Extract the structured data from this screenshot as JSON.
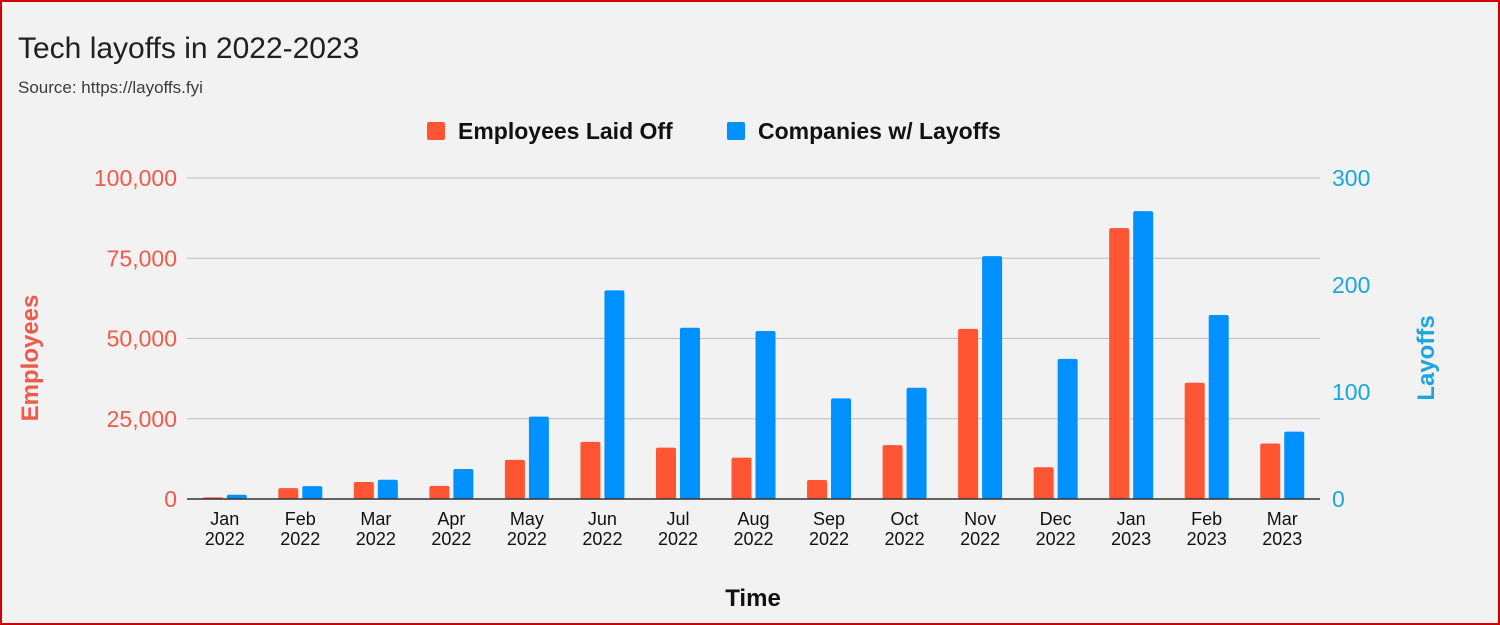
{
  "chart_data": {
    "type": "bar",
    "title": "Tech layoffs in 2022-2023",
    "subtitle": "Source: https://layoffs.fyi",
    "xlabel": "Time",
    "ylabel": "Employees",
    "ylabel_right": "Layoffs",
    "categories": [
      [
        "Jan",
        "2022"
      ],
      [
        "Feb",
        "2022"
      ],
      [
        "Mar",
        "2022"
      ],
      [
        "Apr",
        "2022"
      ],
      [
        "May",
        "2022"
      ],
      [
        "Jun",
        "2022"
      ],
      [
        "Jul",
        "2022"
      ],
      [
        "Aug",
        "2022"
      ],
      [
        "Sep",
        "2022"
      ],
      [
        "Oct",
        "2022"
      ],
      [
        "Nov",
        "2022"
      ],
      [
        "Dec",
        "2022"
      ],
      [
        "Jan",
        "2023"
      ],
      [
        "Feb",
        "2023"
      ],
      [
        "Mar",
        "2023"
      ]
    ],
    "series": [
      {
        "name": "Employees Laid Off",
        "axis": "left",
        "color": "#ff5533",
        "values": [
          500,
          3400,
          5300,
          4100,
          12200,
          17800,
          16000,
          12900,
          5900,
          16800,
          53000,
          9900,
          84400,
          36200,
          17300
        ]
      },
      {
        "name": "Companies w/ Layoffs",
        "axis": "right",
        "color": "#0091ff",
        "values": [
          4,
          12,
          18,
          28,
          77,
          195,
          160,
          157,
          94,
          104,
          227,
          131,
          269,
          172,
          63
        ]
      }
    ],
    "ylim": [
      0,
      100000
    ],
    "ylim_right": [
      0,
      300
    ],
    "yticks": [
      0,
      25000,
      50000,
      75000,
      100000
    ],
    "yticks_labels": [
      "0",
      "25,000",
      "50,000",
      "75,000",
      "100,000"
    ],
    "yticks_right": [
      0,
      100,
      200,
      300
    ],
    "yticks_right_labels": [
      "0",
      "100",
      "200",
      "300"
    ],
    "legend": "top",
    "grid": true,
    "colors": {
      "left_axis": "#f05a4a",
      "right_axis": "#1aa6e0",
      "grid": "#bdbdbd",
      "baseline": "#333333"
    }
  }
}
